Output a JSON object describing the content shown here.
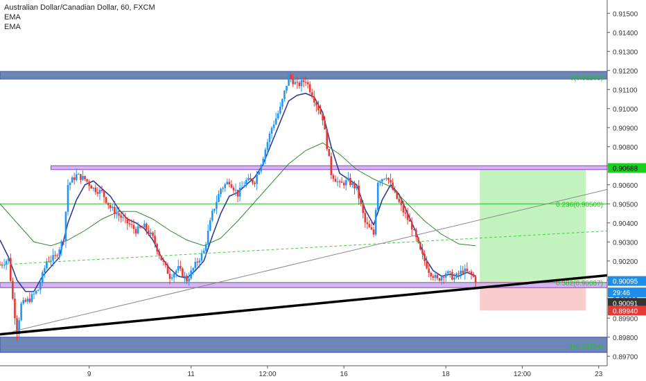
{
  "header": {
    "symbol_line": "Australian Dollar/Canadian Dollar, 60, FXCM",
    "indicators": [
      "EMA",
      "EMA"
    ]
  },
  "chart_data": {
    "type": "candlestick",
    "ylim": [
      0.8965,
      0.9157
    ],
    "y_ticks": [
      0.915,
      0.914,
      0.913,
      0.912,
      0.911,
      0.91,
      0.909,
      0.908,
      0.907,
      0.906,
      0.905,
      0.904,
      0.903,
      0.902,
      0.901,
      0.9,
      0.899,
      0.898,
      0.897
    ],
    "y_tick_labels": [
      "0.91500",
      "0.91400",
      "0.91300",
      "0.91200",
      "0.91100",
      "0.91000",
      "0.90900",
      "0.90800",
      "0.90700",
      "0.90600",
      "0.90500",
      "0.90400",
      "0.90300",
      "0.90200",
      "0.90100",
      "0.90000",
      "0.89900",
      "0.89800",
      "0.89700"
    ],
    "xlim": [
      0,
      143
    ],
    "x_ticks": [
      {
        "t": 21,
        "label": "9"
      },
      {
        "t": 45,
        "label": "11"
      },
      {
        "t": 63,
        "label": "12:00"
      },
      {
        "t": 81,
        "label": "16"
      },
      {
        "t": 105,
        "label": "18"
      },
      {
        "t": 123,
        "label": "12:00"
      },
      {
        "t": 141,
        "label": "23"
      }
    ],
    "close_path": [
      [
        0,
        0.9018
      ],
      [
        2,
        0.9021
      ],
      [
        3,
        0.9
      ],
      [
        4,
        0.8983
      ],
      [
        5,
        0.8997
      ],
      [
        7,
        0.9
      ],
      [
        9,
        0.9005
      ],
      [
        11,
        0.902
      ],
      [
        13,
        0.9022
      ],
      [
        15,
        0.9032
      ],
      [
        16,
        0.906
      ],
      [
        18,
        0.9065
      ],
      [
        20,
        0.9063
      ],
      [
        22,
        0.9058
      ],
      [
        24,
        0.9056
      ],
      [
        26,
        0.9048
      ],
      [
        28,
        0.9044
      ],
      [
        30,
        0.904
      ],
      [
        32,
        0.9036
      ],
      [
        34,
        0.9038
      ],
      [
        36,
        0.9032
      ],
      [
        38,
        0.9021
      ],
      [
        40,
        0.9012
      ],
      [
        42,
        0.9016
      ],
      [
        44,
        0.901
      ],
      [
        46,
        0.9018
      ],
      [
        48,
        0.9025
      ],
      [
        50,
        0.9045
      ],
      [
        52,
        0.9058
      ],
      [
        54,
        0.9062
      ],
      [
        56,
        0.9055
      ],
      [
        58,
        0.9062
      ],
      [
        60,
        0.9062
      ],
      [
        62,
        0.9075
      ],
      [
        64,
        0.909
      ],
      [
        66,
        0.91
      ],
      [
        68,
        0.9117
      ],
      [
        70,
        0.9112
      ],
      [
        72,
        0.9115
      ],
      [
        74,
        0.9105
      ],
      [
        76,
        0.9095
      ],
      [
        78,
        0.9066
      ],
      [
        80,
        0.906
      ],
      [
        82,
        0.9062
      ],
      [
        84,
        0.9058
      ],
      [
        86,
        0.904
      ],
      [
        88,
        0.9034
      ],
      [
        89,
        0.9062
      ],
      [
        91,
        0.9065
      ],
      [
        93,
        0.9055
      ],
      [
        95,
        0.9046
      ],
      [
        97,
        0.9038
      ],
      [
        99,
        0.9025
      ],
      [
        101,
        0.9015
      ],
      [
        103,
        0.901
      ],
      [
        105,
        0.9014
      ],
      [
        107,
        0.9011
      ],
      [
        109,
        0.9015
      ],
      [
        111,
        0.9013
      ],
      [
        112,
        0.901
      ]
    ],
    "series": [
      {
        "name": "EMA",
        "color": "#2e3a93",
        "width": 1.6,
        "values": [
          [
            0,
            0.9031
          ],
          [
            2,
            0.9022
          ],
          [
            4,
            0.901
          ],
          [
            6,
            0.9004
          ],
          [
            8,
            0.9004
          ],
          [
            10,
            0.9012
          ],
          [
            12,
            0.9017
          ],
          [
            14,
            0.9022
          ],
          [
            16,
            0.904
          ],
          [
            18,
            0.9052
          ],
          [
            20,
            0.906
          ],
          [
            22,
            0.9062
          ],
          [
            24,
            0.9058
          ],
          [
            26,
            0.9054
          ],
          [
            28,
            0.9047
          ],
          [
            30,
            0.9042
          ],
          [
            32,
            0.904
          ],
          [
            34,
            0.9037
          ],
          [
            36,
            0.9031
          ],
          [
            38,
            0.9022
          ],
          [
            40,
            0.9016
          ],
          [
            42,
            0.9012
          ],
          [
            44,
            0.9011
          ],
          [
            46,
            0.9015
          ],
          [
            48,
            0.902
          ],
          [
            50,
            0.9033
          ],
          [
            52,
            0.9045
          ],
          [
            54,
            0.9054
          ],
          [
            56,
            0.9056
          ],
          [
            58,
            0.906
          ],
          [
            60,
            0.9064
          ],
          [
            62,
            0.9071
          ],
          [
            64,
            0.9082
          ],
          [
            66,
            0.9093
          ],
          [
            68,
            0.9104
          ],
          [
            70,
            0.9107
          ],
          [
            72,
            0.9108
          ],
          [
            74,
            0.9106
          ],
          [
            76,
            0.9098
          ],
          [
            78,
            0.908
          ],
          [
            80,
            0.9066
          ],
          [
            82,
            0.9063
          ],
          [
            84,
            0.906
          ],
          [
            86,
            0.9047
          ],
          [
            88,
            0.9039
          ],
          [
            90,
            0.9052
          ],
          [
            92,
            0.906
          ],
          [
            94,
            0.9055
          ],
          [
            96,
            0.9045
          ],
          [
            98,
            0.9035
          ],
          [
            100,
            0.9022
          ],
          [
            102,
            0.9015
          ],
          [
            104,
            0.9012
          ],
          [
            106,
            0.9013
          ],
          [
            108,
            0.9012
          ],
          [
            110,
            0.9014
          ],
          [
            112,
            0.9012
          ]
        ]
      },
      {
        "name": "EMA",
        "color": "#2e8b2e",
        "width": 1,
        "values": [
          [
            0,
            0.905
          ],
          [
            4,
            0.904
          ],
          [
            8,
            0.903
          ],
          [
            12,
            0.9028
          ],
          [
            16,
            0.9031
          ],
          [
            20,
            0.9036
          ],
          [
            24,
            0.9042
          ],
          [
            28,
            0.9046
          ],
          [
            32,
            0.9046
          ],
          [
            36,
            0.9042
          ],
          [
            40,
            0.9036
          ],
          [
            44,
            0.9031
          ],
          [
            48,
            0.9028
          ],
          [
            52,
            0.9032
          ],
          [
            56,
            0.9041
          ],
          [
            60,
            0.9051
          ],
          [
            64,
            0.9061
          ],
          [
            68,
            0.9071
          ],
          [
            72,
            0.9078
          ],
          [
            76,
            0.9082
          ],
          [
            80,
            0.9076
          ],
          [
            84,
            0.9068
          ],
          [
            88,
            0.9063
          ],
          [
            92,
            0.9059
          ],
          [
            96,
            0.905
          ],
          [
            100,
            0.9041
          ],
          [
            104,
            0.9034
          ],
          [
            108,
            0.9029
          ],
          [
            112,
            0.9028
          ]
        ]
      }
    ],
    "drawings": {
      "zones": [
        {
          "y_top": 0.91195,
          "y_bottom": 0.91155,
          "t0": 0,
          "t1": 157,
          "fill": "#6f86b9",
          "stroke": "#3f4fa0"
        },
        {
          "y_top": 0.898,
          "y_bottom": 0.8972,
          "t0": 0,
          "t1": 157,
          "fill": "#6f86b9",
          "stroke": "#3f4fa0"
        }
      ],
      "rectangles": [
        {
          "y_top": 0.907,
          "y_bottom": 0.9068,
          "t0": 12,
          "t1": 148,
          "fill": "#d7b3f2",
          "stroke": "#8a43c9"
        },
        {
          "y_top": 0.90087,
          "y_bottom": 0.9006,
          "t0": 0,
          "t1": 157,
          "fill": "#d7b3f2",
          "stroke": "#8a43c9"
        }
      ],
      "fib_levels": [
        {
          "label": "0(0.91165)",
          "y": 0.91165,
          "color": "#22c022",
          "dash": false
        },
        {
          "label": "0.236(0.90500)",
          "y": 0.905,
          "color": "#22c022",
          "dash": false
        },
        {
          "label": "0.382(0.90087)",
          "y": 0.90087,
          "color": "#22c022",
          "dash": true
        },
        {
          "label": "1(0.89754)",
          "y": 0.89754,
          "color": "#22c022",
          "dash": true
        }
      ],
      "trendlines": [
        {
          "t0": 0,
          "y0": 0.89815,
          "t1": 157,
          "y1": 0.90155,
          "color": "#000000",
          "width": 3.5,
          "dash": false
        },
        {
          "t0": 3,
          "y0": 0.8983,
          "t1": 157,
          "y1": 0.9065,
          "color": "#888888",
          "width": 1,
          "dash": false
        },
        {
          "t0": 0,
          "y0": 0.9018,
          "t1": 157,
          "y1": 0.90375,
          "color": "#44cc44",
          "width": 1,
          "dash": true
        }
      ],
      "position": {
        "t0": 113,
        "t1": 138,
        "entry": 0.90095,
        "target": 0.90688,
        "stop": 0.8994,
        "profit_fill": "#b7f0b2",
        "loss_fill": "#f8c4c4"
      }
    },
    "price_tags": [
      {
        "label": "0.90688",
        "y": 0.90688,
        "bg": "#17d11c",
        "fg": "#000000"
      },
      {
        "label": "0.90095",
        "y": 0.90095,
        "bg": "#1f8eeb",
        "fg": "#ffffff"
      },
      {
        "label": "29:46",
        "y": 0.90035,
        "bg": "#1f8eeb",
        "fg": "#ffffff"
      },
      {
        "label": "0.90091",
        "y": 0.8998,
        "bg": "#333333",
        "fg": "#ffffff"
      },
      {
        "label": "0.89940",
        "y": 0.8994,
        "bg": "#e53935",
        "fg": "#ffffff"
      }
    ],
    "candle_colors": {
      "up": "#2196f3",
      "down": "#e53935"
    }
  }
}
